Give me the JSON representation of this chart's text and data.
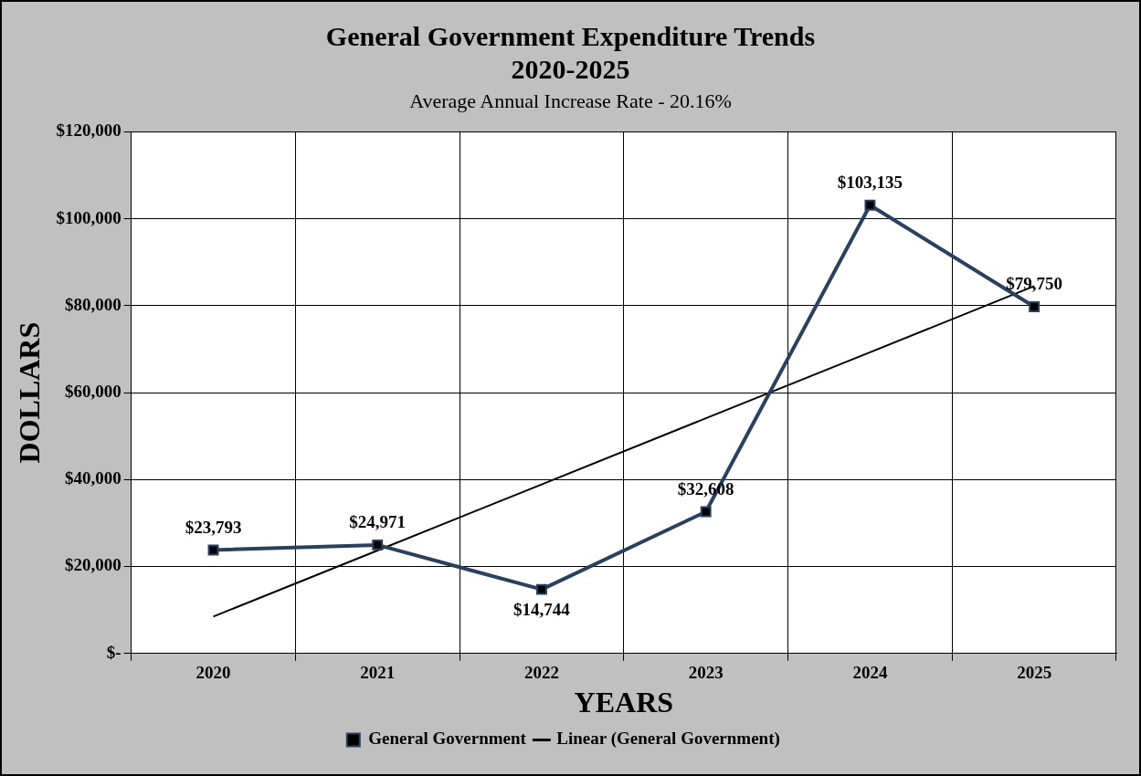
{
  "chart_data": {
    "type": "line",
    "title": "General Government Expenditure Trends\n2020-2025",
    "subtitle": "Average Annual Increase Rate -  20.16%",
    "xlabel": "YEARS",
    "ylabel": "DOLLARS",
    "categories": [
      "2020",
      "2021",
      "2022",
      "2023",
      "2024",
      "2025"
    ],
    "series": [
      {
        "name": "General Government",
        "color": "#2b3f5f",
        "values": [
          23793,
          24971,
          14744,
          32608,
          103135,
          79750
        ],
        "value_labels": [
          "$23,793",
          "$24,971",
          "$14,744",
          "$32,608",
          "$103,135",
          "$79,750"
        ],
        "marker": "square"
      },
      {
        "name": "Linear (General Government)",
        "color": "#000000",
        "values": [
          8500,
          23700,
          38900,
          54100,
          69300,
          84500
        ],
        "marker": "none"
      }
    ],
    "ylim": [
      0,
      120000
    ],
    "yticks": [
      {
        "value": 0,
        "label": "$-"
      },
      {
        "value": 20000,
        "label": "$20,000"
      },
      {
        "value": 40000,
        "label": "$40,000"
      },
      {
        "value": 60000,
        "label": "$60,000"
      },
      {
        "value": 80000,
        "label": "$80,000"
      },
      {
        "value": 100000,
        "label": "$100,000"
      },
      {
        "value": 120000,
        "label": "$120,000"
      }
    ],
    "grid": true,
    "legend": "bottom",
    "line_style": "solid"
  }
}
